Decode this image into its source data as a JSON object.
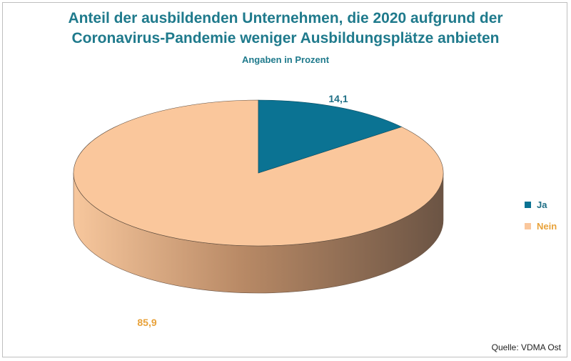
{
  "chart_data": {
    "type": "pie",
    "title_line1": "Anteil der ausbildenden Unternehmen, die 2020 aufgrund der",
    "title_line2": "Coronavirus-Pandemie weniger Ausbildungsplätze anbieten",
    "subtitle": "Angaben in Prozent",
    "slices": [
      {
        "label": "Ja",
        "value": 14.1,
        "value_text": "14,1",
        "color": "#0b7393",
        "label_color": "#1f6f86"
      },
      {
        "label": "Nein",
        "value": 85.9,
        "value_text": "85,9",
        "color": "#fac79c",
        "label_color": "#e8a23a"
      }
    ],
    "legend_position": "right",
    "source": "Quelle: VDMA Ost"
  }
}
